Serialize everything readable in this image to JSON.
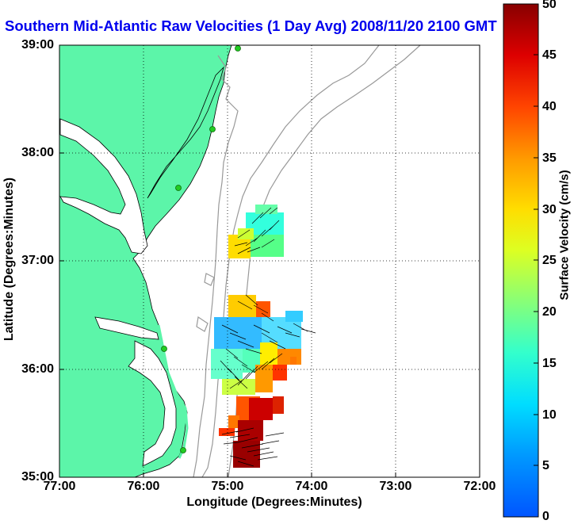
{
  "title": "Southern Mid-Atlantic Raw Velocities (1 Day Avg) 2008/11/20 2100 GMT",
  "map": {
    "xlabel": "Longitude (Degrees:Minutes)",
    "ylabel": "Latitude (Degrees:Minutes)",
    "lon_ticks": [
      "77:00",
      "76:00",
      "75:00",
      "74:00",
      "73:00",
      "72:00"
    ],
    "lat_ticks": [
      "39:00",
      "38:00",
      "37:00",
      "36:00",
      "35:00"
    ],
    "lon_range": [
      -77.0,
      -72.0
    ],
    "lat_range": [
      35.0,
      39.0
    ],
    "grid": "dotted",
    "colors": {
      "land": "#5cf5a9",
      "ocean": "#ffffff",
      "bathymetry": "#999999",
      "coastline": "#000000",
      "stations": "#22cc22",
      "title": "#0000ee"
    }
  },
  "colorbar": {
    "label": "Surface Velocity (cm/s)",
    "ticks": [
      "0",
      "5",
      "10",
      "15",
      "20",
      "25",
      "30",
      "35",
      "40",
      "45",
      "50"
    ],
    "range": [
      0,
      50
    ],
    "colormap": "jet"
  }
}
